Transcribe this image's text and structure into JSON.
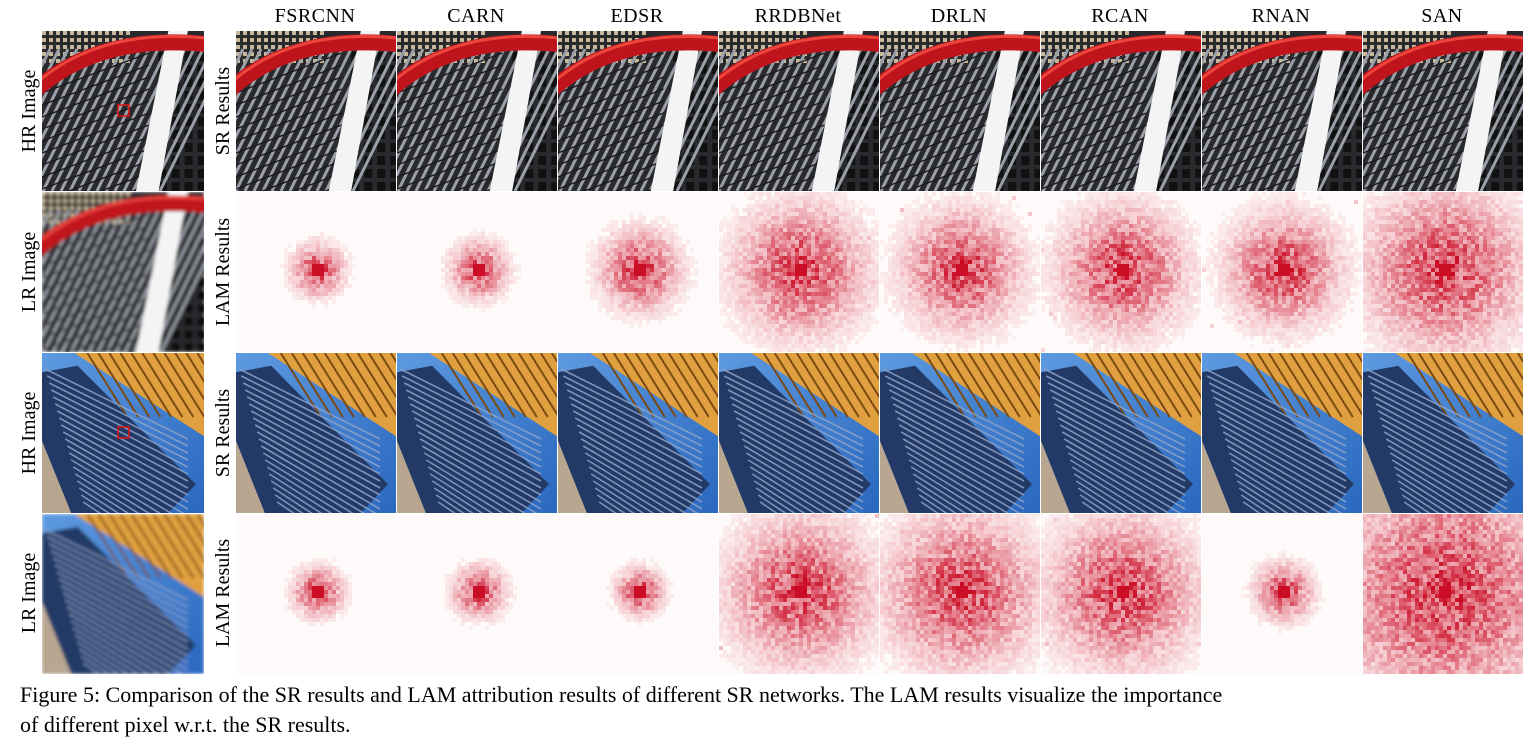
{
  "columns": [
    "FSRCNN",
    "CARN",
    "EDSR",
    "RRDBNet",
    "DRLN",
    "RCAN",
    "RNAN",
    "SAN"
  ],
  "rows": [
    {
      "left_label": "HR Image",
      "right_label": "SR Results",
      "kind": "sr",
      "scene": "red"
    },
    {
      "left_label": "LR Image",
      "right_label": "LAM Results",
      "kind": "lam",
      "scene": "red"
    },
    {
      "left_label": "HR Image",
      "right_label": "SR Results",
      "kind": "sr",
      "scene": "blue"
    },
    {
      "left_label": "LR Image",
      "right_label": "LAM Results",
      "kind": "lam",
      "scene": "blue"
    }
  ],
  "lam_spread": [
    [
      0.08,
      0.1,
      0.2,
      0.42,
      0.36,
      0.4,
      0.34,
      0.55
    ],
    [
      0.07,
      0.08,
      0.06,
      0.48,
      0.52,
      0.5,
      0.1,
      0.85
    ]
  ],
  "caption": {
    "line1": "Figure 5: Comparison of the SR results and LAM attribution results of different SR networks. The LAM results visualize the importance",
    "line2": "of different pixel w.r.t. the SR results."
  },
  "colors": {
    "attribution": "#c8001a",
    "sky": "#3d7fd0",
    "facade_gold": "#e0a040",
    "frame_red": "#c0141c"
  }
}
